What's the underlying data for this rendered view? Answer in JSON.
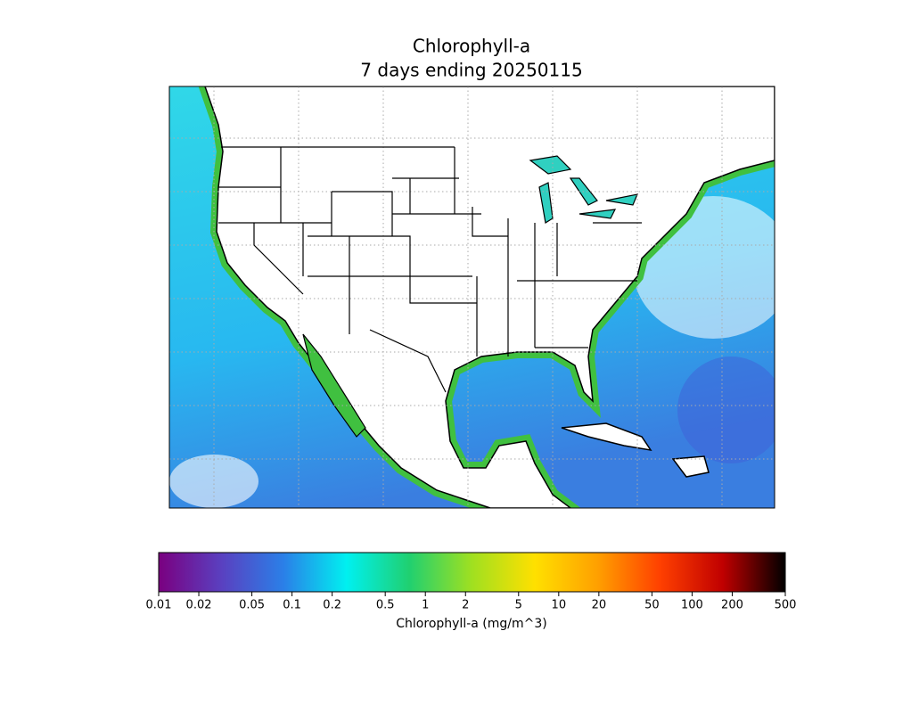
{
  "title": "Chlorophyll-a",
  "subtitle": "7 days ending 20250115",
  "colorbar": {
    "label": "Chlorophyll-a (mg/m^3)",
    "scale": "log",
    "lim": [
      0.01,
      500
    ],
    "ticks": [
      0.01,
      0.02,
      0.05,
      0.1,
      0.2,
      0.5,
      1,
      2,
      5,
      10,
      20,
      50,
      100,
      200,
      500
    ],
    "colors": [
      "#7a0080",
      "#5a40c0",
      "#2a80e8",
      "#00f0f0",
      "#20d070",
      "#a0e020",
      "#ffe000",
      "#ffa000",
      "#ff4000",
      "#c00000",
      "#000000"
    ]
  }
}
